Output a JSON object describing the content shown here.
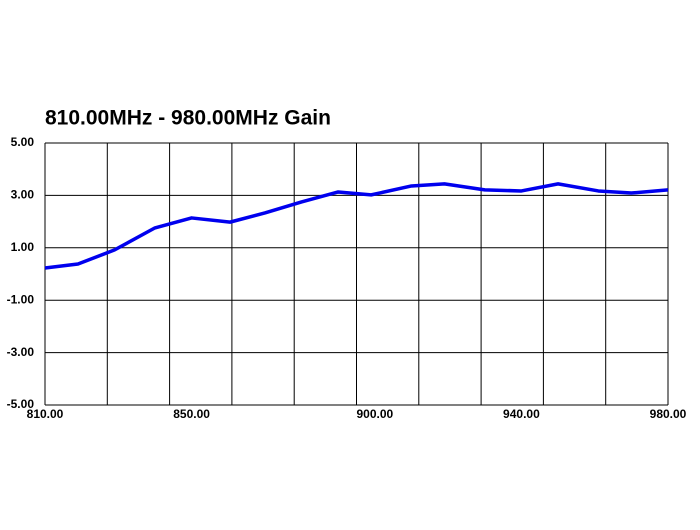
{
  "chart_data": {
    "type": "line",
    "title": "810.00MHz - 980.00MHz Gain",
    "x": [
      810,
      819,
      829,
      840,
      850,
      860.5,
      870,
      880,
      890,
      899,
      910,
      919,
      930,
      940,
      950,
      961,
      970,
      980
    ],
    "series": [
      {
        "name": "Gain",
        "color": "#0000ee",
        "values": [
          0.23,
          0.38,
          0.92,
          1.76,
          2.14,
          1.98,
          2.33,
          2.75,
          3.13,
          3.02,
          3.36,
          3.44,
          3.21,
          3.17,
          3.44,
          3.17,
          3.09,
          3.21
        ]
      }
    ],
    "xlim": [
      810,
      980
    ],
    "xticks": [
      {
        "value": 810,
        "label": "810.00"
      },
      {
        "value": 850,
        "label": "850.00"
      },
      {
        "value": 900,
        "label": "900.00"
      },
      {
        "value": 940,
        "label": "940.00"
      },
      {
        "value": 980,
        "label": "980.00"
      }
    ],
    "xgrid": [
      810,
      827,
      844,
      861,
      878,
      895,
      912,
      929,
      946,
      963,
      980
    ],
    "ylim": [
      -5,
      5
    ],
    "yticks": [
      {
        "value": -5,
        "label": "-5.00"
      },
      {
        "value": -3,
        "label": "-3.00"
      },
      {
        "value": -1,
        "label": "-1.00"
      },
      {
        "value": 1,
        "label": "1.00"
      },
      {
        "value": 3,
        "label": "3.00"
      },
      {
        "value": 5,
        "label": "5.00"
      }
    ],
    "grid": true
  }
}
